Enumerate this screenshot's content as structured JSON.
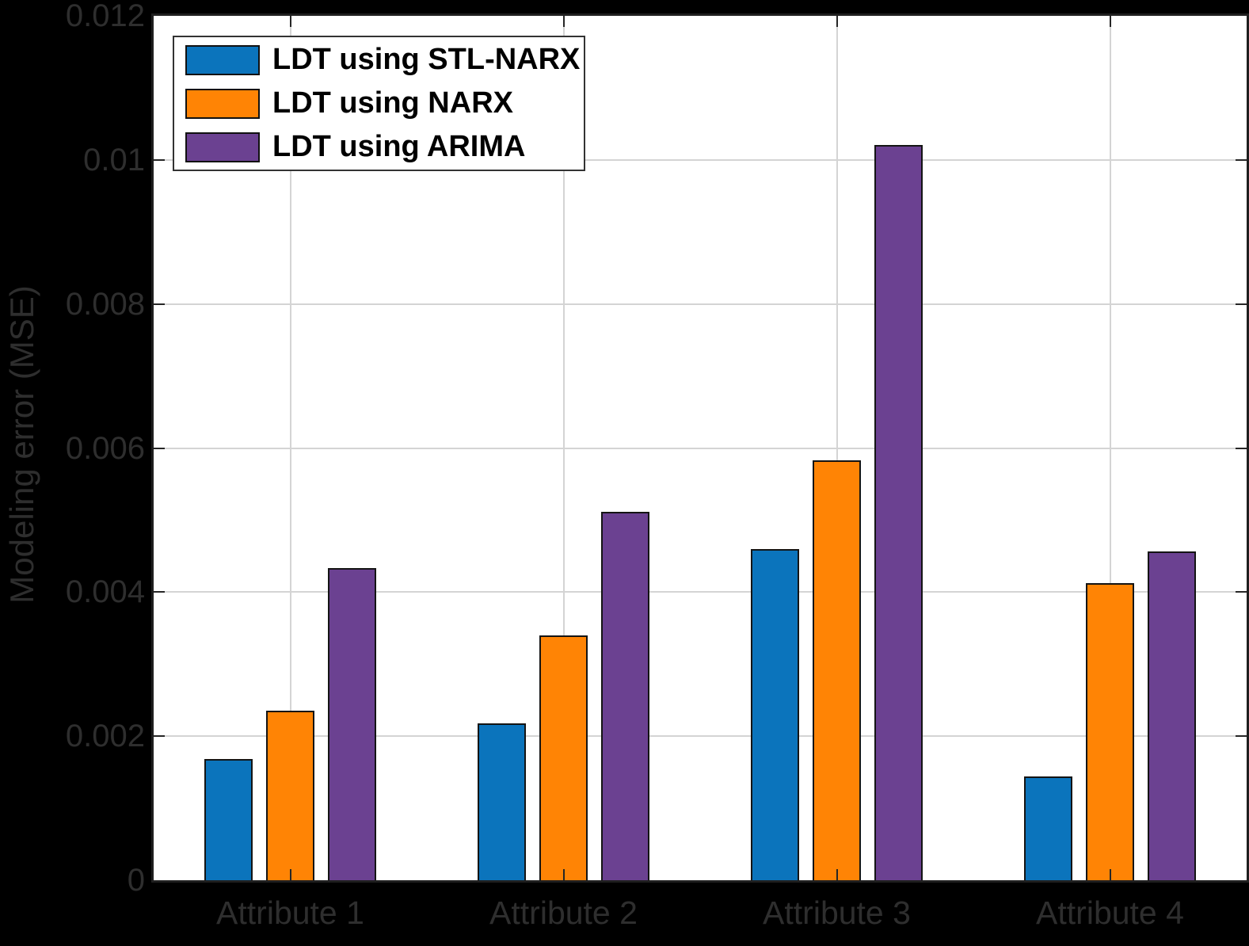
{
  "style": {
    "background": "#000000",
    "plot_background": "#ffffff",
    "grid_color": "#d4d4d4",
    "axis_color": "#1f1f1f",
    "tick_color": "#262626",
    "label_color": "#2e2e2e",
    "legend_border": "#333333",
    "bar_edge": "#141414"
  },
  "chart_data": {
    "type": "bar",
    "title": "",
    "xlabel": "",
    "ylabel": "Modeling error (MSE)",
    "categories": [
      "Attribute 1",
      "Attribute 2",
      "Attribute 3",
      "Attribute 4"
    ],
    "series": [
      {
        "name": "LDT using STL-NARX",
        "color": "#0B74BC",
        "values": [
          0.00168,
          0.00218,
          0.0046,
          0.00144
        ]
      },
      {
        "name": "LDT using NARX",
        "color": "#FF8405",
        "values": [
          0.00235,
          0.0034,
          0.00583,
          0.00412
        ]
      },
      {
        "name": "LDT using ARIMA",
        "color": "#6B4191",
        "values": [
          0.00433,
          0.00512,
          0.01021,
          0.00457
        ]
      }
    ],
    "ylim": [
      0,
      0.012
    ],
    "yticks": [
      0,
      0.002,
      0.004,
      0.006,
      0.008,
      0.01,
      0.012
    ],
    "ytick_labels": [
      "0",
      "0.002",
      "0.004",
      "0.006",
      "0.008",
      "0.01",
      "0.012"
    ],
    "grid": true,
    "legend_position": "top-left"
  }
}
